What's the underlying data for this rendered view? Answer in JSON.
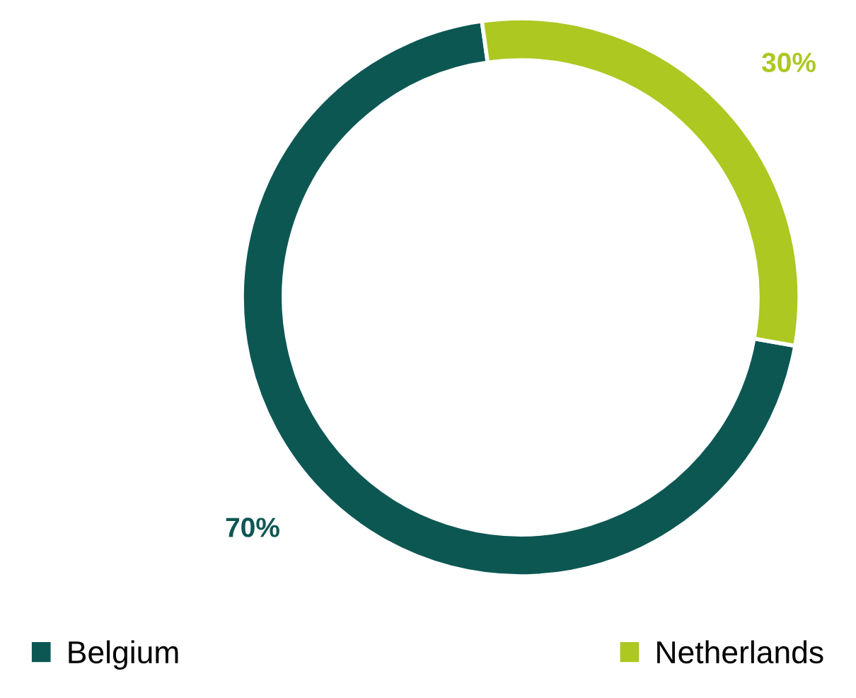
{
  "chart_data": {
    "type": "donut",
    "categories": [
      "Belgium",
      "Netherlands"
    ],
    "values": [
      70,
      30
    ],
    "colors": [
      "#0d5753",
      "#acc821"
    ],
    "value_labels": [
      "70%",
      "30%"
    ],
    "legend": "bottom"
  }
}
